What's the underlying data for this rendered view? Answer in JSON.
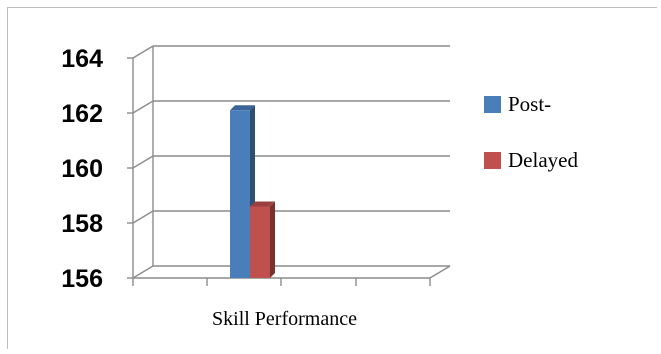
{
  "chart_data": {
    "type": "bar",
    "title": "",
    "xlabel": "",
    "ylabel": "",
    "categories": [
      "Skill Performance"
    ],
    "series": [
      {
        "name": "Post-",
        "values": [
          162.1
        ],
        "color": "#4a7ebb"
      },
      {
        "name": "Delayed",
        "values": [
          158.6
        ],
        "color": "#c0504d"
      }
    ],
    "ylim": [
      156,
      164
    ],
    "yticks": [
      "156",
      "158",
      "160",
      "162",
      "164"
    ],
    "grid": true,
    "legend_position": "right",
    "style": "3d-clustered-column"
  }
}
